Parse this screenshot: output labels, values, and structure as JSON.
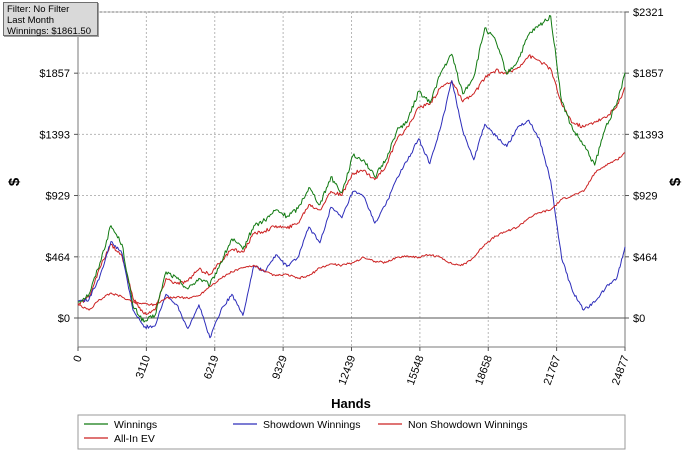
{
  "filter_box": {
    "filter": "Filter: No Filter",
    "period": "Last Month",
    "winnings": "Winnings: $1861.50"
  },
  "chart_data": {
    "type": "line",
    "xlabel": "Hands",
    "ylabel_left": "$",
    "ylabel_right": "$",
    "xlim": [
      0,
      24877
    ],
    "ylim": [
      -220,
      2321
    ],
    "x_ticks": [
      0,
      3110,
      6219,
      9329,
      12439,
      15548,
      18658,
      21767,
      24877
    ],
    "x_tick_labels": [
      "0",
      "3110",
      "6219",
      "9329",
      "12439",
      "15548",
      "18658",
      "21767",
      "24877"
    ],
    "y_ticks": [
      0,
      464,
      929,
      1393,
      1857,
      2321
    ],
    "y_tick_labels": [
      "$0",
      "$464",
      "$929",
      "$1393",
      "$1857",
      "$2321"
    ],
    "grid": true,
    "legend_position": "bottom",
    "x": [
      0,
      500,
      1000,
      1500,
      2000,
      2500,
      3000,
      3500,
      4000,
      4500,
      5000,
      5500,
      6000,
      6500,
      7000,
      7500,
      8000,
      8500,
      9000,
      9500,
      10000,
      10500,
      11000,
      11500,
      12000,
      12500,
      13000,
      13500,
      14000,
      14500,
      15000,
      15500,
      16000,
      16500,
      17000,
      17500,
      18000,
      18500,
      19000,
      19500,
      20000,
      20500,
      21000,
      21500,
      22000,
      22500,
      23000,
      23500,
      24000,
      24500,
      24877
    ],
    "series": [
      {
        "name": "Winnings",
        "color": "#117a11",
        "values": [
          120,
          180,
          420,
          700,
          560,
          90,
          -30,
          20,
          350,
          300,
          220,
          300,
          250,
          420,
          600,
          520,
          700,
          740,
          820,
          770,
          830,
          990,
          860,
          1070,
          950,
          1230,
          1200,
          1070,
          1200,
          1420,
          1500,
          1720,
          1630,
          1860,
          2000,
          1700,
          1830,
          2200,
          2100,
          1850,
          1950,
          2150,
          2220,
          2290,
          1640,
          1430,
          1310,
          1160,
          1450,
          1620,
          1861.5
        ]
      },
      {
        "name": "Showdown Winnings",
        "color": "#2d2dba",
        "values": [
          130,
          140,
          320,
          580,
          490,
          60,
          -70,
          -60,
          180,
          100,
          -80,
          100,
          -150,
          60,
          180,
          20,
          400,
          350,
          480,
          390,
          460,
          690,
          570,
          840,
          760,
          960,
          920,
          720,
          860,
          1060,
          1200,
          1360,
          1170,
          1450,
          1800,
          1420,
          1200,
          1470,
          1380,
          1300,
          1450,
          1500,
          1350,
          1040,
          450,
          200,
          60,
          120,
          230,
          300,
          540
        ]
      },
      {
        "name": "Non Showdown Winnings",
        "color": "#cc2222",
        "values": [
          100,
          60,
          140,
          190,
          160,
          120,
          110,
          100,
          150,
          160,
          150,
          170,
          240,
          300,
          350,
          380,
          400,
          350,
          320,
          330,
          300,
          320,
          380,
          410,
          400,
          420,
          460,
          430,
          420,
          460,
          470,
          460,
          480,
          460,
          410,
          400,
          460,
          560,
          620,
          660,
          690,
          760,
          800,
          820,
          900,
          930,
          960,
          1100,
          1160,
          1200,
          1250
        ]
      },
      {
        "name": "All-In EV",
        "color": "#cc2222",
        "values": [
          100,
          160,
          380,
          560,
          470,
          150,
          30,
          60,
          300,
          260,
          280,
          370,
          330,
          430,
          520,
          500,
          640,
          660,
          700,
          680,
          720,
          860,
          820,
          960,
          930,
          1100,
          1120,
          1050,
          1150,
          1350,
          1450,
          1600,
          1620,
          1750,
          1800,
          1640,
          1700,
          1820,
          1880,
          1850,
          1900,
          1990,
          1950,
          1890,
          1620,
          1480,
          1450,
          1490,
          1520,
          1600,
          1750
        ]
      }
    ]
  }
}
